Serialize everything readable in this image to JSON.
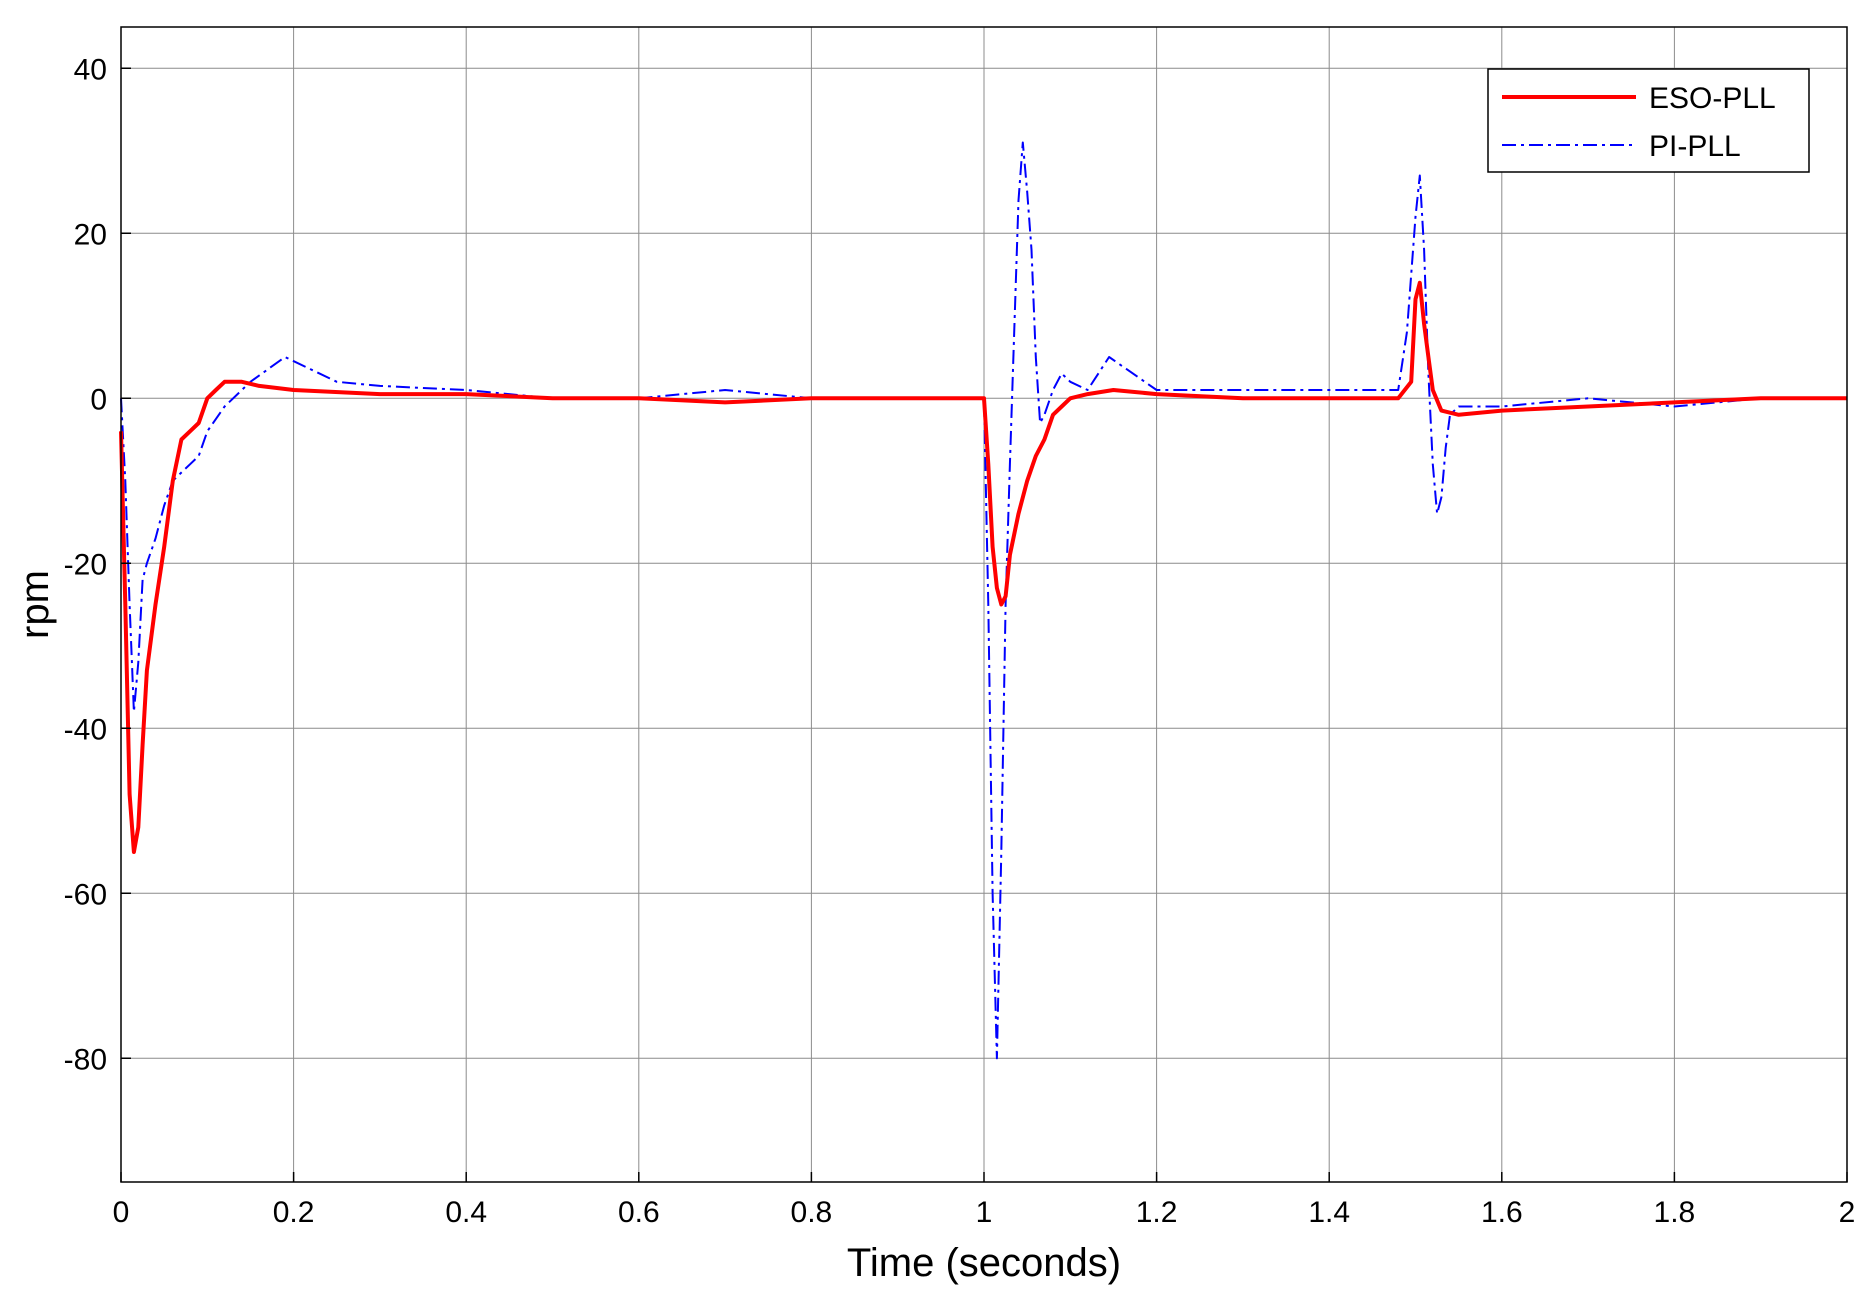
{
  "chart_data": {
    "type": "line",
    "title": "",
    "xlabel": "Time (seconds)",
    "ylabel": "rpm",
    "xlim": [
      0,
      2
    ],
    "ylim": [
      -95,
      45
    ],
    "xticks": [
      0,
      0.2,
      0.4,
      0.6,
      0.8,
      1,
      1.2,
      1.4,
      1.6,
      1.8,
      2
    ],
    "xtick_labels": [
      "0",
      "0.2",
      "0.4",
      "0.6",
      "0.8",
      "1",
      "1.2",
      "1.4",
      "1.6",
      "1.8",
      "2"
    ],
    "yticks": [
      40,
      20,
      0,
      -20,
      -40,
      -60,
      -80
    ],
    "ytick_labels": [
      "40",
      "20",
      "0",
      "-20",
      "-40",
      "-60",
      "-80"
    ],
    "grid": true,
    "legend_position": "top-right",
    "series": [
      {
        "name": "ESO-PLL",
        "color": "#ff0000",
        "style": "solid",
        "x": [
          0,
          0.005,
          0.01,
          0.015,
          0.02,
          0.025,
          0.03,
          0.04,
          0.05,
          0.06,
          0.07,
          0.08,
          0.09,
          0.1,
          0.11,
          0.12,
          0.14,
          0.16,
          0.2,
          0.3,
          0.4,
          0.5,
          0.6,
          0.7,
          0.8,
          0.9,
          0.95,
          1.0,
          1.005,
          1.01,
          1.015,
          1.02,
          1.025,
          1.03,
          1.04,
          1.05,
          1.06,
          1.07,
          1.08,
          1.09,
          1.1,
          1.12,
          1.15,
          1.2,
          1.3,
          1.4,
          1.48,
          1.495,
          1.5,
          1.505,
          1.51,
          1.515,
          1.52,
          1.53,
          1.55,
          1.6,
          1.7,
          1.8,
          1.9,
          2.0
        ],
        "y": [
          -4,
          -25,
          -48,
          -55,
          -52,
          -42,
          -33,
          -25,
          -18,
          -10,
          -5,
          -4,
          -3,
          0,
          1,
          2,
          2,
          1.5,
          1,
          0.5,
          0.5,
          0,
          0,
          -0.5,
          0,
          0,
          0,
          0,
          -8,
          -18,
          -23,
          -25,
          -24,
          -19,
          -14,
          -10,
          -7,
          -5,
          -2,
          -1,
          0,
          0.5,
          1,
          0.5,
          0,
          0,
          0,
          2,
          12,
          14,
          9,
          5,
          1,
          -1.5,
          -2,
          -1.5,
          -1,
          -0.5,
          0,
          0
        ]
      },
      {
        "name": "PI-PLL",
        "color": "#0000ff",
        "style": "dash-dot",
        "x": [
          0,
          0.005,
          0.01,
          0.015,
          0.02,
          0.025,
          0.03,
          0.04,
          0.05,
          0.06,
          0.07,
          0.08,
          0.09,
          0.1,
          0.12,
          0.15,
          0.19,
          0.25,
          0.3,
          0.4,
          0.5,
          0.6,
          0.7,
          0.8,
          0.9,
          0.95,
          1.0,
          1.005,
          1.01,
          1.015,
          1.02,
          1.025,
          1.03,
          1.035,
          1.04,
          1.045,
          1.05,
          1.055,
          1.06,
          1.065,
          1.07,
          1.08,
          1.09,
          1.1,
          1.12,
          1.145,
          1.2,
          1.3,
          1.4,
          1.48,
          1.49,
          1.5,
          1.505,
          1.51,
          1.515,
          1.52,
          1.525,
          1.53,
          1.535,
          1.54,
          1.55,
          1.6,
          1.7,
          1.8,
          1.9,
          2.0
        ],
        "y": [
          0,
          -10,
          -25,
          -38,
          -32,
          -22,
          -20,
          -17,
          -13,
          -10,
          -9,
          -8,
          -7,
          -4,
          -1,
          2,
          5,
          2,
          1.5,
          1,
          0,
          0,
          1,
          0,
          0,
          0,
          0,
          -25,
          -60,
          -80,
          -55,
          -25,
          -8,
          8,
          24,
          31,
          25,
          18,
          5,
          -3,
          -2,
          1,
          3,
          2,
          1,
          5,
          1,
          1,
          1,
          1,
          8,
          22,
          27,
          18,
          3,
          -8,
          -14,
          -12,
          -6,
          -2,
          -1,
          -1,
          0,
          -1,
          0,
          0
        ]
      }
    ]
  }
}
